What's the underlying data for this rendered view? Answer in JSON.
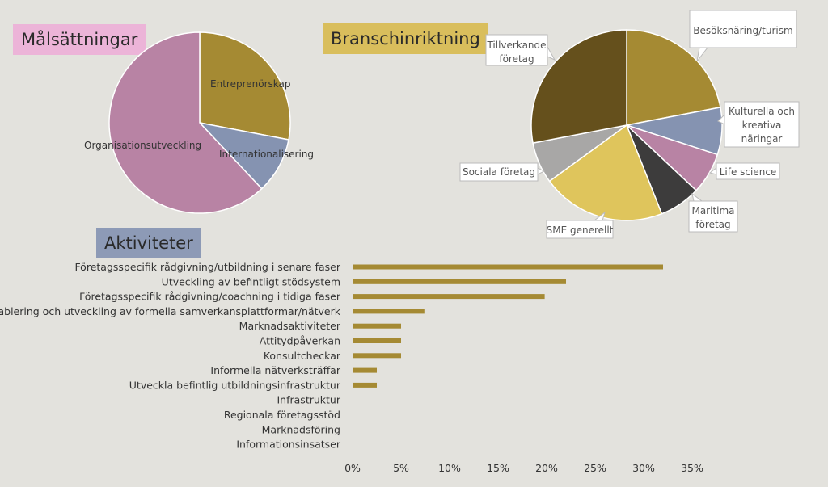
{
  "colors": {
    "background": "#e3e2dd",
    "gold": "#a58a33",
    "slate": "#8593b1",
    "mauve": "#b883a4",
    "dark_brown": "#65501c",
    "yellow": "#dfc55c",
    "grey": "#a8a7a6",
    "charcoal": "#3d3c3c",
    "bar": "#a58a33"
  },
  "titles": {
    "malsattningar": "Målsättningar",
    "bransch": "Branschinriktning",
    "aktiviteter": "Aktiviteter"
  },
  "chart_data": [
    {
      "type": "pie",
      "title": "Målsättningar",
      "slices": [
        {
          "label": "Entreprenörskap",
          "value": 28,
          "color": "#a58a33"
        },
        {
          "label": "Internationalisering",
          "value": 10,
          "color": "#8593b1"
        },
        {
          "label": "Organisationsutveckling",
          "value": 62,
          "color": "#b883a4"
        }
      ]
    },
    {
      "type": "pie",
      "title": "Branschinriktning",
      "slices": [
        {
          "label": "Besöksnäring/turism",
          "value": 22,
          "color": "#a58a33"
        },
        {
          "label": "Kulturella och kreativa näringar",
          "value": 8,
          "color": "#8593b1"
        },
        {
          "label": "Life science",
          "value": 7,
          "color": "#b883a4"
        },
        {
          "label": "Maritima företag",
          "value": 7,
          "color": "#3d3c3c"
        },
        {
          "label": "SME generellt",
          "value": 21,
          "color": "#dfc55c"
        },
        {
          "label": "Sociala företag",
          "value": 7,
          "color": "#a8a7a6"
        },
        {
          "label": "Tillverkande företag",
          "value": 28,
          "color": "#65501c"
        }
      ]
    },
    {
      "type": "bar",
      "orientation": "horizontal",
      "title": "Aktiviteter",
      "categories": [
        "Företagsspecifik rådgivning/utbildning i senare faser",
        "Utveckling av befintligt stödsystem",
        "Företagsspecifik rådgivning/coachning i tidiga faser",
        "Etablering och utveckling av formella samverkansplattformar/nätverk",
        "Marknadsaktiviteter",
        "Attitydpåverkan",
        "Konsultcheckar",
        "Informella nätverksträffar",
        "Utveckla befintlig utbildningsinfrastruktur",
        "Infrastruktur",
        "Regionala företagsstöd",
        "Marknadsföring",
        "Informationsinsatser"
      ],
      "values": [
        0.32,
        0.22,
        0.198,
        0.074,
        0.05,
        0.05,
        0.05,
        0.025,
        0.025,
        0,
        0,
        0,
        0
      ],
      "xlim": [
        0,
        0.35
      ],
      "xticks": [
        "0%",
        "5%",
        "10%",
        "15%",
        "20%",
        "25%",
        "30%",
        "35%"
      ],
      "grid": false
    }
  ]
}
